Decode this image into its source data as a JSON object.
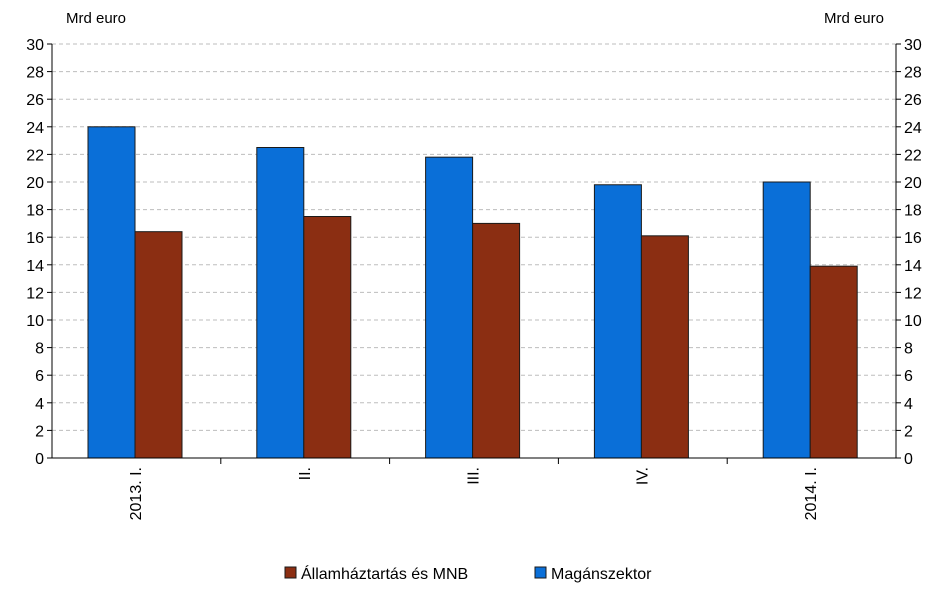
{
  "chart_data": {
    "type": "bar",
    "categories": [
      "2013. I.",
      "II.",
      "III.",
      "IV.",
      "2014. I."
    ],
    "series": [
      {
        "name": "Magánszektor",
        "values": [
          24.0,
          22.5,
          21.8,
          19.8,
          20.0
        ],
        "color": "#0a6fd8"
      },
      {
        "name": "Államháztartás és MNB",
        "values": [
          16.4,
          17.5,
          17.0,
          16.1,
          13.9
        ],
        "color": "#8b2e12"
      }
    ],
    "ylabel_left": "Mrd euro",
    "ylabel_right": "Mrd euro",
    "ylim": [
      0,
      30
    ],
    "yticks": [
      0,
      2,
      4,
      6,
      8,
      10,
      12,
      14,
      16,
      18,
      20,
      22,
      24,
      26,
      28,
      30
    ],
    "grid": true,
    "legend_position": "bottom",
    "legend_order": [
      "Államháztartás és MNB",
      "Magánszektor"
    ]
  }
}
